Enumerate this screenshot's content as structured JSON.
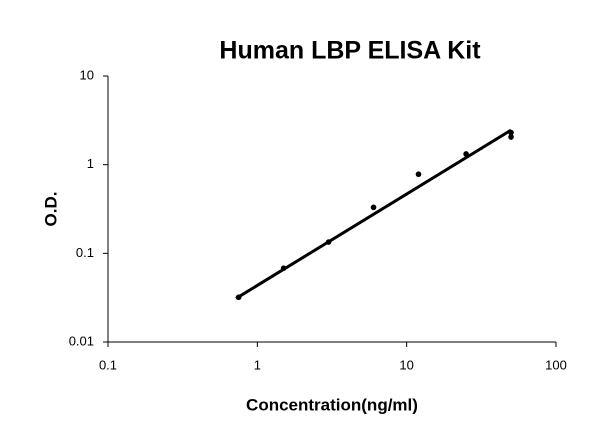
{
  "chart_data": {
    "type": "scatter",
    "title": "Human LBP ELISA Kit",
    "x_label": "Concentration(ng/ml)",
    "y_label": "O.D.",
    "x": [
      0.75,
      1.5,
      3,
      6,
      12,
      25,
      50,
      50
    ],
    "values": [
      0.032,
      0.068,
      0.134,
      0.33,
      0.78,
      1.32,
      2.3,
      2.05
    ],
    "color": "#000000",
    "fit_line": {
      "x": [
        0.72,
        50
      ],
      "values": [
        0.031,
        2.45
      ],
      "color": "#000000"
    },
    "xscale": "log",
    "yscale": "log",
    "xlim": [
      0.1,
      100
    ],
    "ylim": [
      0.01,
      10
    ],
    "xticks": [
      0.1,
      1,
      10,
      100
    ],
    "yticks": [
      0.01,
      0.1,
      1,
      10
    ],
    "grid": false
  }
}
